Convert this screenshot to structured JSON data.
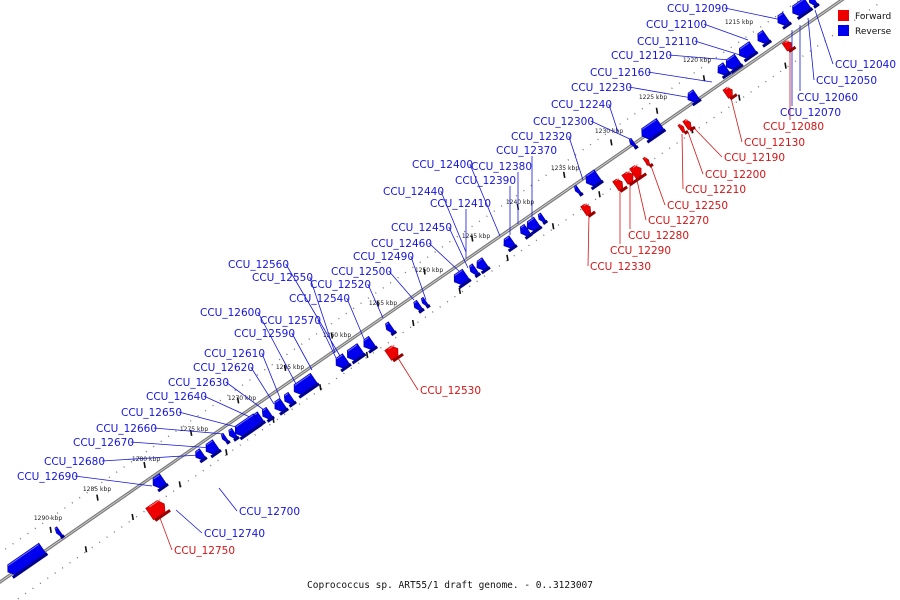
{
  "caption": "Coprococcus sp. ART55/1 draft genome. - 0..3123007",
  "legend": [
    {
      "label": "Forward",
      "color": "#ee0000"
    },
    {
      "label": "Reverse",
      "color": "#0000ee"
    }
  ],
  "colors": {
    "forward": "#ee0000",
    "reverse": "#0000ee",
    "forward_label": "#d41414",
    "reverse_label": "#1515dd",
    "backbone": "#555555"
  },
  "scale_ticks": [
    {
      "label": "1215 kbp",
      "kbp": 1215
    },
    {
      "label": "1220 kbp",
      "kbp": 1220
    },
    {
      "label": "1225 kbp",
      "kbp": 1225
    },
    {
      "label": "1230 kbp",
      "kbp": 1230
    },
    {
      "label": "1235 kbp",
      "kbp": 1235
    },
    {
      "label": "1240 kbp",
      "kbp": 1240
    },
    {
      "label": "1245 kbp",
      "kbp": 1245
    },
    {
      "label": "1250 kbp",
      "kbp": 1250
    },
    {
      "label": "1255 kbp",
      "kbp": 1255
    },
    {
      "label": "1260 kbp",
      "kbp": 1260
    },
    {
      "label": "1265 kbp",
      "kbp": 1265
    },
    {
      "label": "1270 kbp",
      "kbp": 1270
    },
    {
      "label": "1275 kbp",
      "kbp": 1275
    },
    {
      "label": "1280 kbp",
      "kbp": 1280
    },
    {
      "label": "1285 kbp",
      "kbp": 1285
    },
    {
      "label": "1290 kbp",
      "kbp": 1290
    }
  ],
  "reverse_genes": [
    {
      "name": "CCU_12040"
    },
    {
      "name": "CCU_12050"
    },
    {
      "name": "CCU_12060"
    },
    {
      "name": "CCU_12070"
    },
    {
      "name": "CCU_12090"
    },
    {
      "name": "CCU_12100"
    },
    {
      "name": "CCU_12110"
    },
    {
      "name": "CCU_12120"
    },
    {
      "name": "CCU_12160"
    },
    {
      "name": "CCU_12230"
    },
    {
      "name": "CCU_12240"
    },
    {
      "name": "CCU_12300"
    },
    {
      "name": "CCU_12320"
    },
    {
      "name": "CCU_12370"
    },
    {
      "name": "CCU_12380"
    },
    {
      "name": "CCU_12390"
    },
    {
      "name": "CCU_12400"
    },
    {
      "name": "CCU_12410"
    },
    {
      "name": "CCU_12440"
    },
    {
      "name": "CCU_12450"
    },
    {
      "name": "CCU_12460"
    },
    {
      "name": "CCU_12490"
    },
    {
      "name": "CCU_12500"
    },
    {
      "name": "CCU_12520"
    },
    {
      "name": "CCU_12540"
    },
    {
      "name": "CCU_12550"
    },
    {
      "name": "CCU_12560"
    },
    {
      "name": "CCU_12570"
    },
    {
      "name": "CCU_12590"
    },
    {
      "name": "CCU_12600"
    },
    {
      "name": "CCU_12610"
    },
    {
      "name": "CCU_12620"
    },
    {
      "name": "CCU_12630"
    },
    {
      "name": "CCU_12640"
    },
    {
      "name": "CCU_12650"
    },
    {
      "name": "CCU_12660"
    },
    {
      "name": "CCU_12670"
    },
    {
      "name": "CCU_12680"
    },
    {
      "name": "CCU_12690"
    },
    {
      "name": "CCU_12700"
    },
    {
      "name": "CCU_12740"
    }
  ],
  "forward_genes": [
    {
      "name": "CCU_12080"
    },
    {
      "name": "CCU_12130"
    },
    {
      "name": "CCU_12190"
    },
    {
      "name": "CCU_12200"
    },
    {
      "name": "CCU_12210"
    },
    {
      "name": "CCU_12250"
    },
    {
      "name": "CCU_12270"
    },
    {
      "name": "CCU_12280"
    },
    {
      "name": "CCU_12290"
    },
    {
      "name": "CCU_12330"
    },
    {
      "name": "CCU_12530"
    },
    {
      "name": "CCU_12750"
    }
  ]
}
